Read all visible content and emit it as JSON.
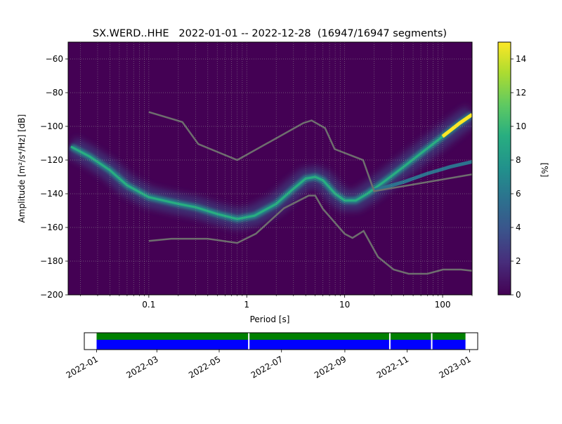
{
  "chart_data": [
    {
      "type": "heatmap",
      "title": "SX.WERD..HHE   2022-01-01 -- 2022-12-28  (16947/16947 segments)",
      "xlabel": "Period [s]",
      "ylabel": "Amplitude [m²/s⁴/Hz] [dB]",
      "xscale": "log",
      "xlim": [
        0.015,
        200
      ],
      "ylim": [
        -200,
        -50
      ],
      "x_ticks": [
        {
          "value": 0.1,
          "label": "0.1"
        },
        {
          "value": 1,
          "label": "1"
        },
        {
          "value": 10,
          "label": "10"
        },
        {
          "value": 100,
          "label": "100"
        }
      ],
      "y_ticks": [
        {
          "value": -60,
          "label": "−60"
        },
        {
          "value": -80,
          "label": "−80"
        },
        {
          "value": -100,
          "label": "−100"
        },
        {
          "value": -120,
          "label": "−120"
        },
        {
          "value": -140,
          "label": "−140"
        },
        {
          "value": -160,
          "label": "−160"
        },
        {
          "value": -180,
          "label": "−180"
        },
        {
          "value": -200,
          "label": "−200"
        }
      ],
      "grid": true,
      "colormap": "viridis",
      "colorbar": {
        "label": "[%]",
        "range": [
          0,
          15
        ],
        "ticks": [
          {
            "value": 0,
            "label": "0"
          },
          {
            "value": 2,
            "label": "2"
          },
          {
            "value": 4,
            "label": "4"
          },
          {
            "value": 6,
            "label": "6"
          },
          {
            "value": 8,
            "label": "8"
          },
          {
            "value": 10,
            "label": "10"
          },
          {
            "value": 12,
            "label": "12"
          },
          {
            "value": 14,
            "label": "14"
          }
        ]
      },
      "psd_mode": [
        [
          0.016,
          -112
        ],
        [
          0.025,
          -118
        ],
        [
          0.04,
          -126
        ],
        [
          0.06,
          -135
        ],
        [
          0.1,
          -142
        ],
        [
          0.2,
          -146
        ],
        [
          0.3,
          -148
        ],
        [
          0.5,
          -152
        ],
        [
          0.8,
          -155
        ],
        [
          1.2,
          -153
        ],
        [
          2,
          -146
        ],
        [
          3,
          -137
        ],
        [
          4,
          -131
        ],
        [
          5,
          -130
        ],
        [
          6,
          -132
        ],
        [
          8,
          -140
        ],
        [
          10,
          -144
        ],
        [
          13,
          -144
        ],
        [
          17,
          -140
        ],
        [
          25,
          -133
        ],
        [
          40,
          -124
        ],
        [
          60,
          -116
        ],
        [
          100,
          -106
        ],
        [
          150,
          -98
        ],
        [
          200,
          -93
        ]
      ],
      "psd_secondary": [
        [
          20,
          -138
        ],
        [
          40,
          -133
        ],
        [
          70,
          -128
        ],
        [
          120,
          -124
        ],
        [
          200,
          -121
        ]
      ],
      "noise_models": [
        {
          "name": "high noise model",
          "points": [
            [
              0.1,
              -91.5
            ],
            [
              0.22,
              -97.4
            ],
            [
              0.32,
              -110.5
            ],
            [
              0.8,
              -120
            ],
            [
              3.8,
              -98
            ],
            [
              4.6,
              -96.5
            ],
            [
              6.3,
              -101
            ],
            [
              7.9,
              -113.5
            ],
            [
              15.4,
              -120
            ],
            [
              20,
              -138.5
            ],
            [
              200,
              -128.5
            ]
          ]
        },
        {
          "name": "low noise model",
          "points": [
            [
              0.1,
              -168
            ],
            [
              0.17,
              -166.7
            ],
            [
              0.4,
              -166.7
            ],
            [
              0.8,
              -169.2
            ],
            [
              1.24,
              -163.7
            ],
            [
              2.4,
              -148.6
            ],
            [
              4.3,
              -141.1
            ],
            [
              5,
              -141.1
            ],
            [
              6,
              -149
            ],
            [
              10,
              -163.8
            ],
            [
              12,
              -166.2
            ],
            [
              15.6,
              -162.1
            ],
            [
              21.9,
              -177.5
            ],
            [
              31.6,
              -185
            ],
            [
              45,
              -187.5
            ],
            [
              70,
              -187.5
            ],
            [
              101,
              -185
            ],
            [
              154,
              -185
            ],
            [
              200,
              -185.7
            ]
          ]
        }
      ]
    },
    {
      "type": "bar",
      "description_of_axis": "data availability timeline",
      "x_ticks": [
        "2022-01",
        "2022-03",
        "2022-05",
        "2022-07",
        "2022-09",
        "2022-11",
        "2023-01"
      ],
      "xlim": [
        "2021-12-20",
        "2023-01-09"
      ],
      "coverage_start": "2022-01-01",
      "coverage_end": "2022-12-28",
      "gaps": [
        "2022-05-30",
        "2022-10-15",
        "2022-11-25"
      ],
      "colors": {
        "top_band": "#008000",
        "bottom_band": "#0000ff",
        "gap": "#ffffff"
      }
    }
  ]
}
